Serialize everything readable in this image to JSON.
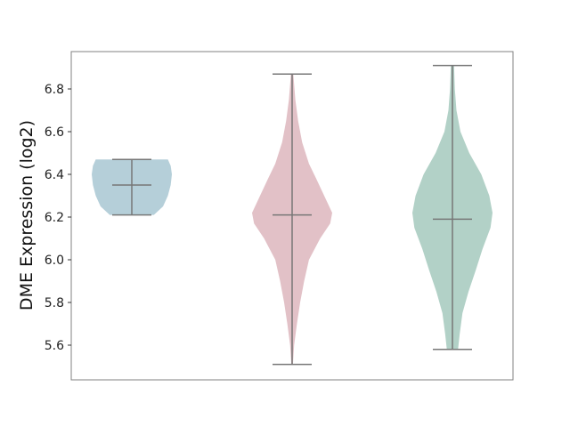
{
  "chart_data": {
    "type": "violin",
    "title": "",
    "xlabel": "",
    "ylabel": "DME Expression (log2)",
    "ylim": [
      5.4375,
      6.975
    ],
    "yticks": [
      "5.6",
      "5.8",
      "6.0",
      "6.2",
      "6.4",
      "6.6",
      "6.8"
    ],
    "grid": false,
    "violins": [
      {
        "color": "#b5cfd9",
        "min": 6.21,
        "median": 6.35,
        "max": 6.47,
        "density": [
          [
            6.21,
            0.55
          ],
          [
            6.25,
            0.78
          ],
          [
            6.3,
            0.9
          ],
          [
            6.35,
            0.97
          ],
          [
            6.4,
            1.0
          ],
          [
            6.44,
            0.97
          ],
          [
            6.47,
            0.9
          ]
        ]
      },
      {
        "color": "#e2c1c7",
        "min": 5.51,
        "median": 6.21,
        "max": 6.87,
        "density": [
          [
            5.51,
            0.02
          ],
          [
            5.6,
            0.05
          ],
          [
            5.7,
            0.12
          ],
          [
            5.8,
            0.2
          ],
          [
            5.9,
            0.3
          ],
          [
            6.0,
            0.42
          ],
          [
            6.1,
            0.7
          ],
          [
            6.17,
            0.95
          ],
          [
            6.22,
            1.0
          ],
          [
            6.3,
            0.8
          ],
          [
            6.38,
            0.6
          ],
          [
            6.45,
            0.42
          ],
          [
            6.55,
            0.25
          ],
          [
            6.65,
            0.15
          ],
          [
            6.75,
            0.08
          ],
          [
            6.87,
            0.03
          ]
        ]
      },
      {
        "color": "#b2d1c7",
        "min": 5.58,
        "median": 6.19,
        "max": 6.91,
        "density": [
          [
            5.58,
            0.14
          ],
          [
            5.65,
            0.18
          ],
          [
            5.75,
            0.25
          ],
          [
            5.85,
            0.4
          ],
          [
            5.95,
            0.58
          ],
          [
            6.05,
            0.75
          ],
          [
            6.15,
            0.95
          ],
          [
            6.22,
            1.0
          ],
          [
            6.3,
            0.92
          ],
          [
            6.4,
            0.72
          ],
          [
            6.5,
            0.42
          ],
          [
            6.6,
            0.2
          ],
          [
            6.7,
            0.1
          ],
          [
            6.8,
            0.06
          ],
          [
            6.91,
            0.04
          ]
        ]
      }
    ]
  }
}
